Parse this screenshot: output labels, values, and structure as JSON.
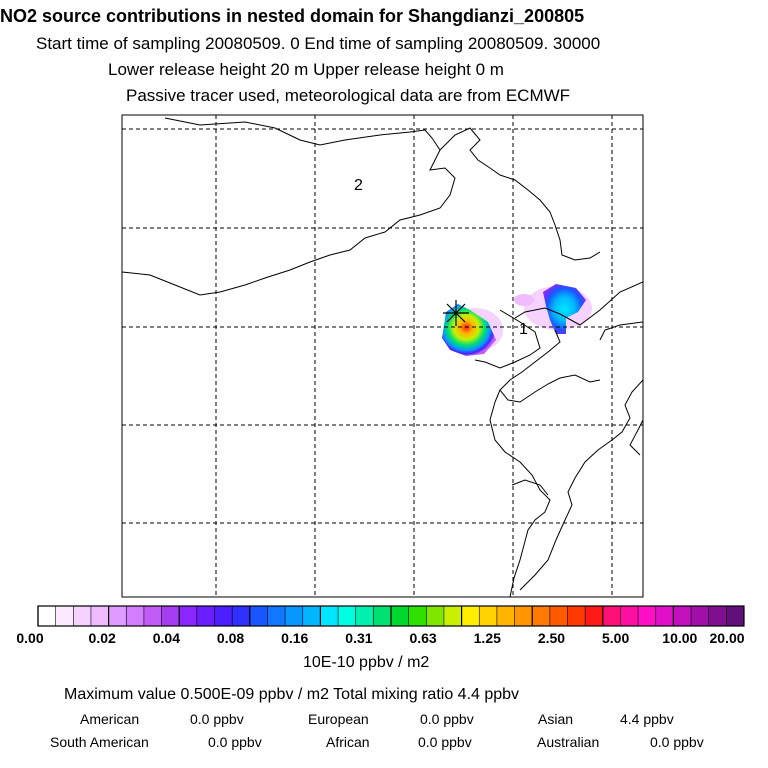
{
  "header": {
    "title": "NO2 source contributions in nested domain for Shangdianzi_200805",
    "line1": "Start time of sampling 20080509.     0     End time of sampling 20080509. 30000",
    "line2": "Lower release height   20 m           Upper release height    0 m",
    "line3": "Passive tracer used, meteorological data are from ECMWF"
  },
  "map": {
    "region_labels": [
      "2",
      "1"
    ],
    "colors": {
      "coast": "#000000",
      "grid": "#000000",
      "frame": "#000000"
    }
  },
  "colorbar": {
    "tick_labels": [
      "0.00",
      "0.02",
      "0.04",
      "0.08",
      "0.16",
      "0.31",
      "0.63",
      "1.25",
      "2.50",
      "5.00",
      "10.00",
      "20.00"
    ],
    "colors": [
      "#ffffff",
      "#fbe9ff",
      "#f5d2ff",
      "#eebcff",
      "#e09bff",
      "#d27eff",
      "#c15df6",
      "#a53ef0",
      "#8a26ff",
      "#6a1fff",
      "#4c1fff",
      "#3030ff",
      "#1a56ff",
      "#1276ff",
      "#0896ff",
      "#00b6ff",
      "#00e6ff",
      "#00ffe2",
      "#00f0b0",
      "#00e070",
      "#00d830",
      "#30e000",
      "#80e800",
      "#c8f000",
      "#ffee00",
      "#ffd200",
      "#ffb400",
      "#ff9600",
      "#ff7a00",
      "#ff5a00",
      "#ff3a00",
      "#ff1a1a",
      "#ff1076",
      "#ff10a2",
      "#ff10c6",
      "#e010c8",
      "#c410bc",
      "#a010a8",
      "#801090",
      "#601078"
    ],
    "units": "10E-10 ppbv / m2"
  },
  "summary": {
    "max_line": "Maximum value  0.500E-09 ppbv / m2     Total mixing ratio       4.4 ppbv",
    "regions": [
      {
        "name": "American",
        "value": "0.0 ppbv"
      },
      {
        "name": "European",
        "value": "0.0 ppbv"
      },
      {
        "name": "Asian",
        "value": "4.4 ppbv"
      },
      {
        "name": "South American",
        "value": "0.0 ppbv"
      },
      {
        "name": "African",
        "value": "0.0 ppbv"
      },
      {
        "name": "Australian",
        "value": "0.0 ppbv"
      }
    ]
  }
}
